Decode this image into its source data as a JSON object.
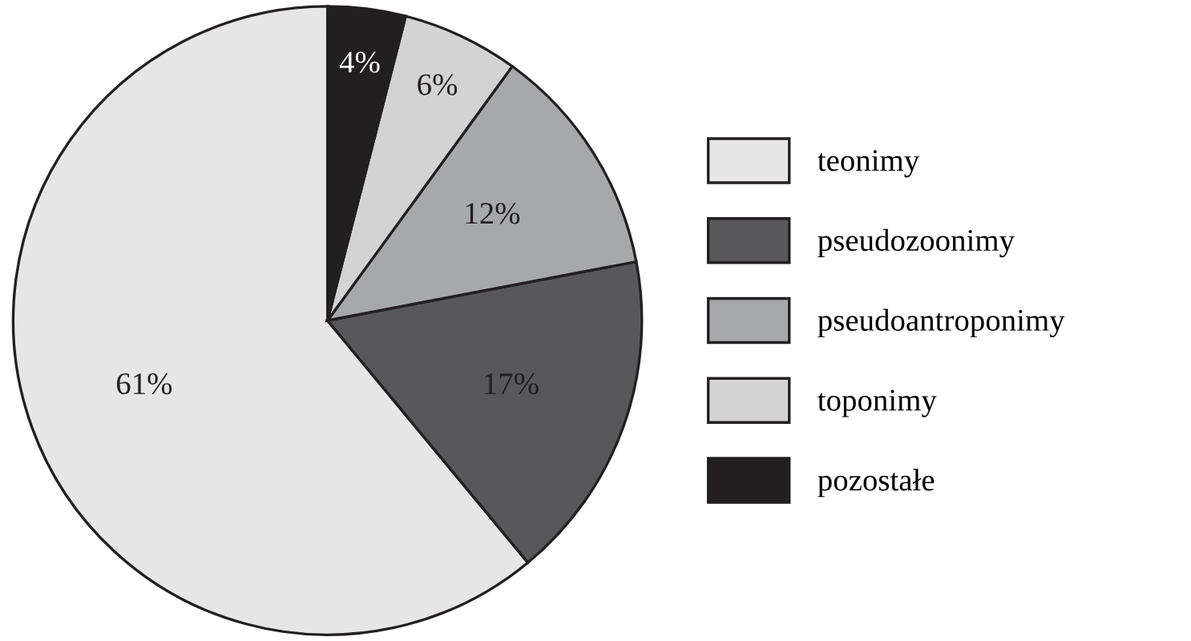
{
  "chart_data": {
    "type": "pie",
    "categories": [
      "teonimy",
      "pseudozoonimy",
      "pseudoantroponimy",
      "toponimy",
      "pozostałe"
    ],
    "values": [
      61,
      17,
      12,
      6,
      4
    ],
    "colors": [
      "#e6e6e7",
      "#58585a",
      "#a7a8aa",
      "#d3d3d4",
      "#231f20"
    ],
    "value_labels": [
      "61%",
      "17%",
      "12%",
      "6%",
      "4%"
    ],
    "legend": "right"
  }
}
